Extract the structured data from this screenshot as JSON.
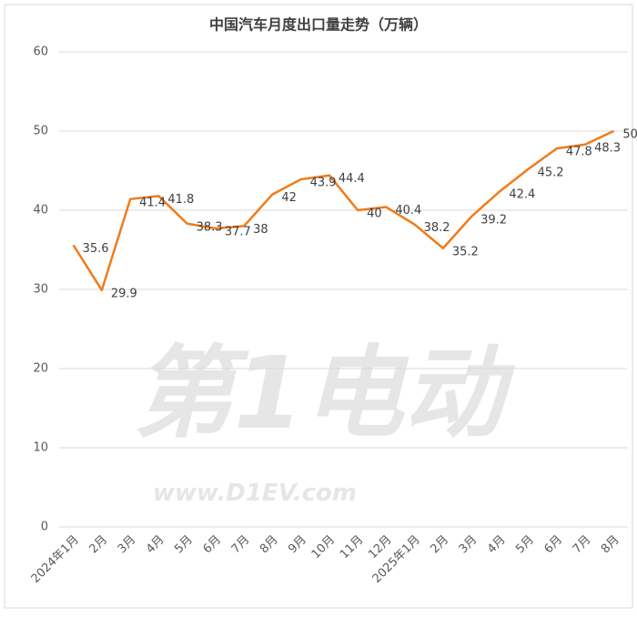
{
  "chart_data": {
    "type": "line",
    "title": "中国汽车月度出口量走势（万辆）",
    "categories": [
      "2024年1月",
      "2月",
      "3月",
      "4月",
      "5月",
      "6月",
      "7月",
      "8月",
      "9月",
      "10月",
      "11月",
      "12月",
      "2025年1月",
      "2月",
      "3月",
      "4月",
      "5月",
      "6月",
      "7月",
      "8月"
    ],
    "series": [
      {
        "name": "出口量",
        "color": "#f07b1a",
        "values": [
          35.6,
          29.9,
          41.4,
          41.8,
          38.3,
          37.7,
          38,
          42,
          43.9,
          44.4,
          40,
          40.4,
          38.2,
          35.2,
          39.2,
          42.4,
          45.2,
          47.8,
          48.3,
          50
        ]
      }
    ],
    "ylim": [
      0,
      60
    ],
    "yticks": [
      0,
      10,
      20,
      30,
      40,
      50,
      60
    ],
    "grid": true,
    "watermark": {
      "logo": "第1电动",
      "url": "www.D1EV.com"
    }
  }
}
